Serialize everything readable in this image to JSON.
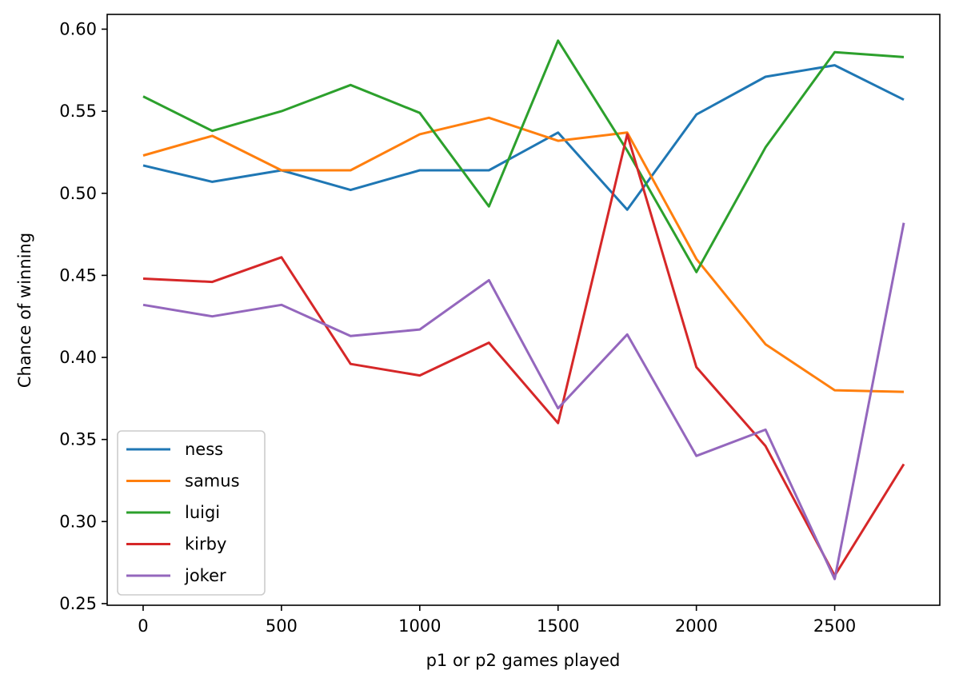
{
  "chart_data": {
    "type": "line",
    "title": "",
    "xlabel": "p1 or p2 games played",
    "ylabel": "Chance of winning",
    "x": [
      0,
      250,
      500,
      750,
      1000,
      1250,
      1500,
      1750,
      2000,
      2250,
      2500,
      2750
    ],
    "xlim": [
      -130,
      2880
    ],
    "ylim": [
      0.249,
      0.609
    ],
    "xticks": [
      0,
      500,
      1000,
      1500,
      2000,
      2500
    ],
    "xtick_labels": [
      "0",
      "500",
      "1000",
      "1500",
      "2000",
      "2500"
    ],
    "yticks": [
      0.25,
      0.3,
      0.35,
      0.4,
      0.45,
      0.5,
      0.55,
      0.6
    ],
    "ytick_labels": [
      "0.25",
      "0.30",
      "0.35",
      "0.40",
      "0.45",
      "0.50",
      "0.55",
      "0.60"
    ],
    "grid": false,
    "legend_position": "lower-left",
    "series": [
      {
        "name": "ness",
        "color": "#1f77b4",
        "values": [
          0.517,
          0.507,
          0.514,
          0.502,
          0.514,
          0.514,
          0.537,
          0.49,
          0.548,
          0.571,
          0.578,
          0.557
        ]
      },
      {
        "name": "samus",
        "color": "#ff7f0e",
        "values": [
          0.523,
          0.535,
          0.514,
          0.514,
          0.536,
          0.546,
          0.532,
          0.537,
          0.46,
          0.408,
          0.38,
          0.379
        ]
      },
      {
        "name": "luigi",
        "color": "#2ca02c",
        "values": [
          0.559,
          0.538,
          0.55,
          0.566,
          0.549,
          0.492,
          0.593,
          0.526,
          0.452,
          0.528,
          0.586,
          0.583
        ]
      },
      {
        "name": "kirby",
        "color": "#d62728",
        "values": [
          0.448,
          0.446,
          0.461,
          0.396,
          0.389,
          0.409,
          0.36,
          0.536,
          0.394,
          0.346,
          0.267,
          0.335
        ]
      },
      {
        "name": "joker",
        "color": "#9467bd",
        "values": [
          0.432,
          0.425,
          0.432,
          0.413,
          0.417,
          0.447,
          0.369,
          0.414,
          0.34,
          0.356,
          0.265,
          0.482
        ]
      }
    ]
  }
}
